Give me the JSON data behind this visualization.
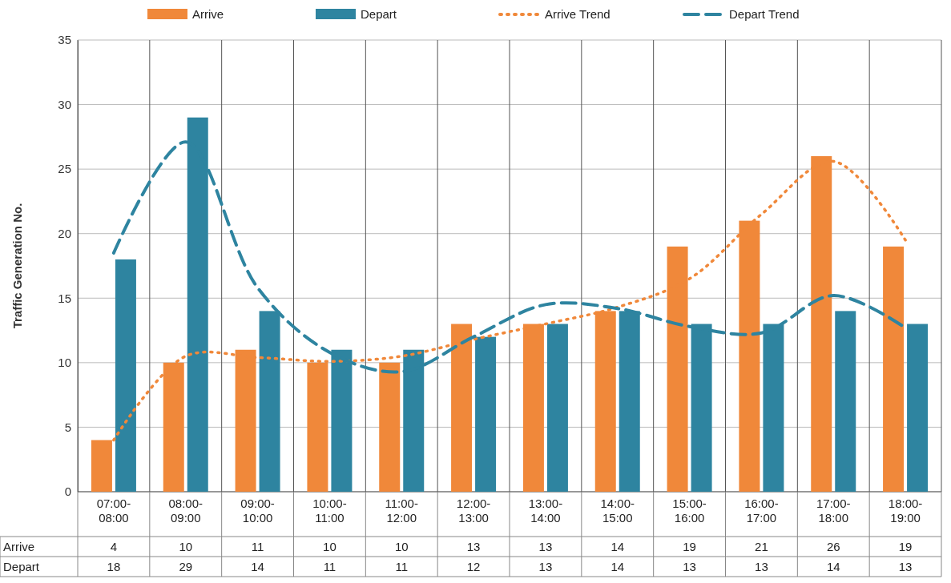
{
  "chart_data": {
    "type": "bar",
    "ylabel": "Traffic Generation No.",
    "categories": [
      "07:00-08:00",
      "08:00-09:00",
      "09:00-10:00",
      "10:00-11:00",
      "11:00-12:00",
      "12:00-13:00",
      "13:00-14:00",
      "14:00-15:00",
      "15:00-16:00",
      "16:00-17:00",
      "17:00-18:00",
      "18:00-19:00"
    ],
    "series": [
      {
        "name": "Arrive",
        "color": "#f0883a",
        "values": [
          4,
          10,
          11,
          10,
          10,
          13,
          13,
          14,
          19,
          21,
          26,
          19
        ],
        "value_labels": [
          "4",
          "10",
          "11",
          "10",
          "10",
          "13",
          "13",
          "14",
          "19",
          "21",
          "26",
          "19"
        ]
      },
      {
        "name": "Depart",
        "color": "#2e84a0",
        "values": [
          18,
          29,
          14,
          11,
          11,
          12,
          13,
          14,
          13,
          13,
          14,
          13
        ],
        "value_labels": [
          "18",
          "29",
          "14",
          "11",
          "11",
          "12",
          "13",
          "14",
          "13",
          "13",
          "14",
          "13"
        ]
      },
      {
        "name": "Arrive Trend",
        "type": "line",
        "line_style": "dotted",
        "color": "#f0883a",
        "values": [
          4,
          10.5,
          10.4,
          10.1,
          10.5,
          11.8,
          13,
          14.3,
          16.5,
          21.5,
          25.6,
          19.5
        ]
      },
      {
        "name": "Depart Trend",
        "type": "line",
        "line_style": "dashed",
        "color": "#2e84a0",
        "values": [
          18.5,
          27.1,
          15.8,
          10.8,
          9.3,
          12,
          14.5,
          14.2,
          12.8,
          12.3,
          15.2,
          12.7
        ]
      }
    ],
    "ylim": [
      0,
      35
    ],
    "yticks": [
      0,
      5,
      10,
      15,
      20,
      25,
      30,
      35
    ],
    "grid": true,
    "legend": "top",
    "marker": "none"
  }
}
